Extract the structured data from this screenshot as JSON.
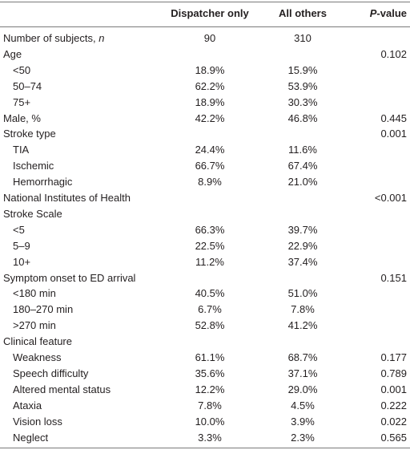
{
  "table": {
    "header": {
      "col1": "Dispatcher only",
      "col2": "All others",
      "p_value": [
        "P",
        "-value"
      ]
    },
    "rows": [
      {
        "label": [
          "Number of subjects, ",
          "n"
        ],
        "indent": false,
        "values": [
          "90",
          "310",
          null
        ]
      },
      {
        "label": [
          "Age"
        ],
        "indent": false,
        "values": [
          null,
          null,
          "0.102"
        ]
      },
      {
        "label": [
          "<50"
        ],
        "indent": true,
        "values": [
          "18.9%",
          "15.9%",
          null
        ]
      },
      {
        "label": [
          "50–74"
        ],
        "indent": true,
        "values": [
          "62.2%",
          "53.9%",
          null
        ]
      },
      {
        "label": [
          "75+"
        ],
        "indent": true,
        "values": [
          "18.9%",
          "30.3%",
          null
        ]
      },
      {
        "label": [
          "Male, %"
        ],
        "indent": false,
        "values": [
          "42.2%",
          "46.8%",
          "0.445"
        ]
      },
      {
        "label": [
          "Stroke type"
        ],
        "indent": false,
        "values": [
          null,
          null,
          "0.001"
        ]
      },
      {
        "label": [
          "TIA"
        ],
        "indent": true,
        "values": [
          "24.4%",
          "11.6%",
          null
        ]
      },
      {
        "label": [
          "Ischemic"
        ],
        "indent": true,
        "values": [
          "66.7%",
          "67.4%",
          null
        ]
      },
      {
        "label": [
          "Hemorrhagic"
        ],
        "indent": true,
        "values": [
          "8.9%",
          "21.0%",
          null
        ]
      },
      {
        "label": [
          "National Institutes of Health"
        ],
        "indent": false,
        "values": [
          null,
          null,
          "<0.001"
        ]
      },
      {
        "label": [
          "Stroke Scale"
        ],
        "indent": false,
        "values": [
          null,
          null,
          null
        ]
      },
      {
        "label": [
          "<5"
        ],
        "indent": true,
        "values": [
          "66.3%",
          "39.7%",
          null
        ]
      },
      {
        "label": [
          "5–9"
        ],
        "indent": true,
        "values": [
          "22.5%",
          "22.9%",
          null
        ]
      },
      {
        "label": [
          "10+"
        ],
        "indent": true,
        "values": [
          "11.2%",
          "37.4%",
          null
        ]
      },
      {
        "label": [
          "Symptom onset to ED arrival"
        ],
        "indent": false,
        "values": [
          null,
          null,
          "0.151"
        ]
      },
      {
        "label": [
          "<180 min"
        ],
        "indent": true,
        "values": [
          "40.5%",
          "51.0%",
          null
        ]
      },
      {
        "label": [
          "180–270 min"
        ],
        "indent": true,
        "values": [
          "6.7%",
          "7.8%",
          null
        ]
      },
      {
        "label": [
          ">270 min"
        ],
        "indent": true,
        "values": [
          "52.8%",
          "41.2%",
          null
        ]
      },
      {
        "label": [
          "Clinical feature"
        ],
        "indent": false,
        "values": [
          null,
          null,
          null
        ]
      },
      {
        "label": [
          "Weakness"
        ],
        "indent": true,
        "values": [
          "61.1%",
          "68.7%",
          "0.177"
        ]
      },
      {
        "label": [
          "Speech difficulty"
        ],
        "indent": true,
        "values": [
          "35.6%",
          "37.1%",
          "0.789"
        ]
      },
      {
        "label": [
          "Altered mental status"
        ],
        "indent": true,
        "values": [
          "12.2%",
          "29.0%",
          "0.001"
        ]
      },
      {
        "label": [
          "Ataxia"
        ],
        "indent": true,
        "values": [
          "7.8%",
          "4.5%",
          "0.222"
        ]
      },
      {
        "label": [
          "Vision loss"
        ],
        "indent": true,
        "values": [
          "10.0%",
          "3.9%",
          "0.022"
        ]
      },
      {
        "label": [
          "Neglect"
        ],
        "indent": true,
        "values": [
          "3.3%",
          "2.3%",
          "0.565"
        ]
      }
    ]
  }
}
